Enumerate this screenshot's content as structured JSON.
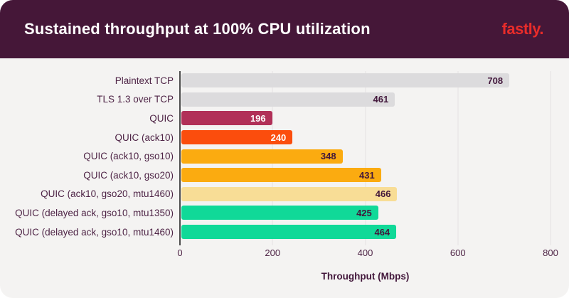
{
  "header": {
    "title": "Sustained throughput at 100% CPU utilization",
    "logo": "fastly.",
    "background": "#451738",
    "logo_color": "#e82c2a"
  },
  "chart_data": {
    "type": "bar",
    "orientation": "horizontal",
    "title": "Sustained throughput at 100% CPU utilization",
    "xlabel": "Throughput (Mbps)",
    "xlim": [
      0,
      800
    ],
    "xticks": [
      0,
      200,
      400,
      600,
      800
    ],
    "grid": true,
    "legend": "none",
    "categories": [
      "Plaintext TCP",
      "TLS 1.3 over TCP",
      "QUIC",
      "QUIC (ack10)",
      "QUIC (ack10, gso10)",
      "QUIC (ack10, gso20)",
      "QUIC (ack10, gso20, mtu1460)",
      "QUIC (delayed ack, gso10, mtu1350)",
      "QUIC (delayed ack, gso10, mtu1460)"
    ],
    "values": [
      708,
      461,
      196,
      240,
      348,
      431,
      466,
      425,
      464
    ],
    "bar_colors": [
      "#dcdbdd",
      "#dcdbdd",
      "#b13058",
      "#fb4d0d",
      "#fbab10",
      "#fbab10",
      "#f8dd96",
      "#10d998",
      "#10d998"
    ],
    "value_label_colors": [
      "#42173b",
      "#42173b",
      "#ffffff",
      "#ffffff",
      "#42173b",
      "#42173b",
      "#42173b",
      "#42173b",
      "#42173b"
    ],
    "gridline_color": "#e4e2e2",
    "axis_spine_color": "#4d4d4d",
    "text_color": "#4e2446"
  }
}
